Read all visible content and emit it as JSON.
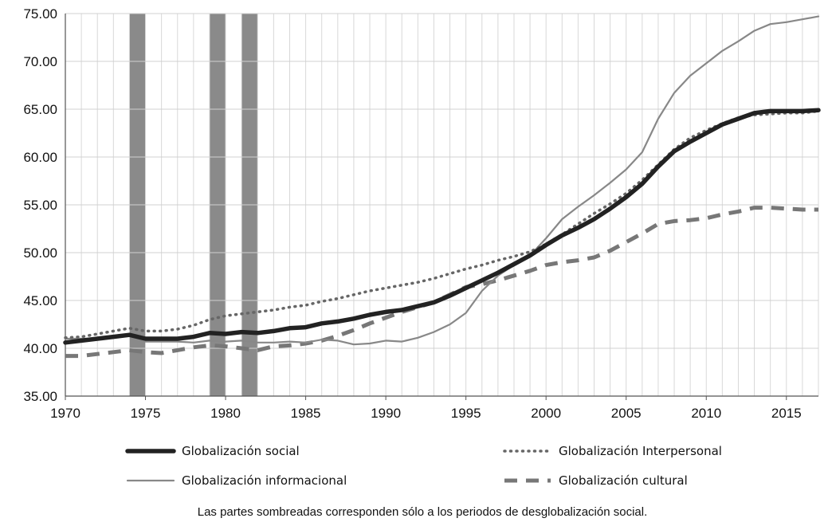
{
  "chart_data": {
    "type": "line",
    "title": "",
    "xlabel": "",
    "ylabel": "",
    "xlim": [
      1970,
      2017
    ],
    "ylim": [
      35,
      75
    ],
    "x_ticks": [
      "1970",
      "1975",
      "1980",
      "1985",
      "1990",
      "1995",
      "2000",
      "2005",
      "2010",
      "2015"
    ],
    "y_ticks": [
      "35.00",
      "40.00",
      "45.00",
      "50.00",
      "55.00",
      "60.00",
      "65.00",
      "70.00",
      "75.00"
    ],
    "grid": "vertical-yearly-and-horizontal",
    "legend_placement": "bottom",
    "shaded_periods": [
      {
        "start": 1974,
        "end": 1975
      },
      {
        "start": 1979,
        "end": 1980
      },
      {
        "start": 1981,
        "end": 1982
      }
    ],
    "x": [
      1970,
      1971,
      1972,
      1973,
      1974,
      1975,
      1976,
      1977,
      1978,
      1979,
      1980,
      1981,
      1982,
      1983,
      1984,
      1985,
      1986,
      1987,
      1988,
      1989,
      1990,
      1991,
      1992,
      1993,
      1994,
      1995,
      1996,
      1997,
      1998,
      1999,
      2000,
      2001,
      2002,
      2003,
      2004,
      2005,
      2006,
      2007,
      2008,
      2009,
      2010,
      2011,
      2012,
      2013,
      2014,
      2015,
      2016,
      2017
    ],
    "series": [
      {
        "name": "Globalización social",
        "style": "thick-solid",
        "color": "#222222",
        "values": [
          40.6,
          40.8,
          41.0,
          41.2,
          41.4,
          41.0,
          41.0,
          41.0,
          41.2,
          41.6,
          41.5,
          41.7,
          41.6,
          41.8,
          42.1,
          42.2,
          42.6,
          42.8,
          43.1,
          43.5,
          43.8,
          44.0,
          44.4,
          44.8,
          45.5,
          46.3,
          47.1,
          47.9,
          48.8,
          49.7,
          50.8,
          51.8,
          52.6,
          53.5,
          54.6,
          55.8,
          57.2,
          59.0,
          60.6,
          61.6,
          62.5,
          63.4,
          64.0,
          64.6,
          64.8,
          64.8,
          64.8,
          64.9
        ]
      },
      {
        "name": "Globalización Interpersonal",
        "style": "dotted",
        "color": "#666666",
        "values": [
          41.1,
          41.2,
          41.5,
          41.8,
          42.1,
          41.8,
          41.8,
          42.0,
          42.4,
          43.0,
          43.4,
          43.6,
          43.8,
          44.0,
          44.3,
          44.5,
          44.9,
          45.2,
          45.6,
          46.0,
          46.3,
          46.6,
          46.9,
          47.3,
          47.8,
          48.3,
          48.7,
          49.2,
          49.6,
          50.1,
          50.9,
          51.9,
          53.0,
          54.1,
          55.1,
          56.2,
          57.6,
          59.2,
          60.8,
          62.0,
          62.8,
          63.5,
          64.1,
          64.4,
          64.5,
          64.6,
          64.6,
          64.8
        ]
      },
      {
        "name": "Globalización informacional",
        "style": "thin-solid",
        "color": "#888888",
        "values": [
          41.0,
          41.0,
          41.0,
          41.2,
          41.3,
          40.7,
          40.7,
          40.7,
          40.6,
          40.8,
          40.7,
          40.8,
          40.6,
          40.6,
          40.7,
          40.6,
          40.9,
          40.8,
          40.4,
          40.5,
          40.8,
          40.7,
          41.1,
          41.7,
          42.5,
          43.7,
          46.0,
          47.6,
          48.7,
          49.7,
          51.5,
          53.5,
          54.8,
          56.0,
          57.3,
          58.7,
          60.5,
          64.0,
          66.7,
          68.5,
          69.8,
          71.1,
          72.1,
          73.2,
          73.9,
          74.1,
          74.4,
          74.7
        ]
      },
      {
        "name": "Globalización cultural",
        "style": "dashed",
        "color": "#777777",
        "values": [
          39.2,
          39.2,
          39.4,
          39.6,
          39.8,
          39.6,
          39.5,
          39.8,
          40.1,
          40.3,
          40.2,
          40.0,
          39.8,
          40.2,
          40.3,
          40.5,
          40.8,
          41.3,
          41.9,
          42.6,
          43.2,
          43.8,
          44.3,
          44.8,
          45.6,
          46.4,
          46.7,
          47.1,
          47.6,
          48.1,
          48.7,
          49.0,
          49.2,
          49.5,
          50.2,
          51.1,
          52.0,
          53.0,
          53.3,
          53.4,
          53.6,
          54.0,
          54.3,
          54.7,
          54.7,
          54.6,
          54.5,
          54.5
        ]
      }
    ],
    "caption": "Las partes sombreadas corresponden sólo a los periodos de desglobalización social."
  }
}
